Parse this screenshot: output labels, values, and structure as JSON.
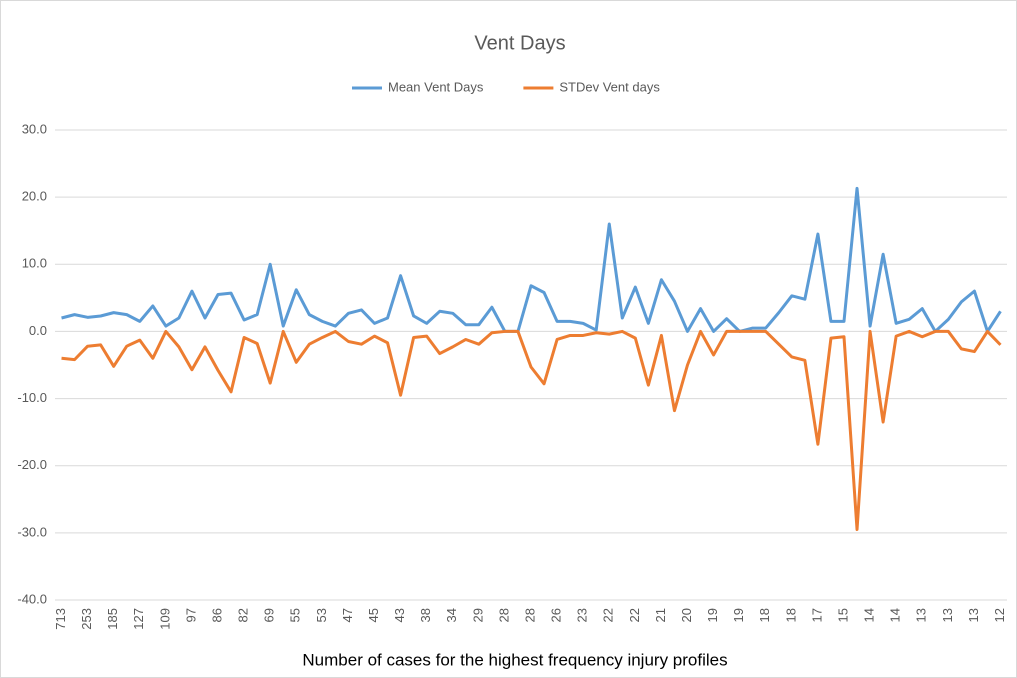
{
  "chart_data": {
    "type": "line",
    "title": "Vent Days",
    "x_label": "Number of cases for the highest frequency injury profiles",
    "categories": [
      "713",
      null,
      "253",
      null,
      "185",
      null,
      "127",
      null,
      "109",
      null,
      "97",
      null,
      "86",
      null,
      "82",
      null,
      "69",
      null,
      "55",
      null,
      "53",
      null,
      "47",
      null,
      "45",
      null,
      "43",
      null,
      "38",
      null,
      "34",
      null,
      "29",
      null,
      "28",
      null,
      "28",
      null,
      "26",
      null,
      "23",
      null,
      "22",
      null,
      "22",
      null,
      "21",
      null,
      "20",
      null,
      "19",
      null,
      "19",
      null,
      "18",
      null,
      "18",
      null,
      "17",
      null,
      "15",
      null,
      "14",
      null,
      "14",
      null,
      "13",
      null,
      "13",
      null,
      "13",
      null,
      "12"
    ],
    "series": [
      {
        "name": "Mean Vent Days",
        "color": "#5b9bd5",
        "values": [
          2.0,
          2.5,
          2.1,
          2.3,
          2.8,
          2.5,
          1.5,
          3.8,
          0.8,
          2.0,
          6.0,
          2.0,
          5.5,
          5.7,
          1.7,
          2.5,
          10.0,
          0.8,
          6.2,
          2.5,
          1.5,
          0.8,
          2.7,
          3.2,
          1.2,
          2.0,
          8.3,
          2.3,
          1.2,
          3.0,
          2.7,
          1.0,
          1.0,
          3.6,
          0.0,
          0.0,
          6.8,
          5.8,
          1.5,
          1.5,
          1.2,
          0.2,
          16.0,
          2.0,
          6.6,
          1.2,
          7.7,
          4.5,
          0.0,
          3.4,
          0.0,
          1.9,
          0.0,
          0.5,
          0.5,
          2.8,
          5.3,
          4.8,
          14.5,
          1.5,
          1.5,
          21.3,
          0.8,
          11.5,
          1.2,
          1.8,
          3.4,
          0.0,
          1.8,
          4.4,
          6.0,
          0.0,
          3.0
        ]
      },
      {
        "name": "STDev Vent days",
        "color": "#ed7d31",
        "values": [
          -4.0,
          -4.2,
          -2.2,
          -2.0,
          -5.2,
          -2.2,
          -1.3,
          -4.0,
          0.0,
          -2.3,
          -5.7,
          -2.3,
          -5.8,
          -9.0,
          -0.9,
          -1.8,
          -7.7,
          0.0,
          -4.6,
          -1.9,
          -0.9,
          0.0,
          -1.5,
          -1.9,
          -0.7,
          -1.7,
          -9.5,
          -0.9,
          -0.7,
          -3.3,
          -2.3,
          -1.2,
          -1.9,
          -0.2,
          0.0,
          0.0,
          -5.3,
          -7.8,
          -1.2,
          -0.6,
          -0.6,
          -0.2,
          -0.4,
          0.0,
          -1.0,
          -8.0,
          -0.6,
          -11.8,
          -5.0,
          0.0,
          -3.5,
          0.0,
          0.0,
          0.0,
          0.0,
          -1.9,
          -3.8,
          -4.3,
          -16.8,
          -1.0,
          -0.8,
          -29.5,
          0.0,
          -13.5,
          -0.7,
          0.0,
          -0.8,
          0.0,
          0.0,
          -2.6,
          -3.0,
          0.0,
          -2.0
        ]
      }
    ],
    "ylim": [
      -40,
      30
    ],
    "yticks": [
      {
        "value": -40,
        "label": "-40.0"
      },
      {
        "value": -30,
        "label": "-30.0"
      },
      {
        "value": -20,
        "label": "-20.0"
      },
      {
        "value": -10,
        "label": "-10.0"
      },
      {
        "value": 0,
        "label": "0.0"
      },
      {
        "value": 10,
        "label": "10.0"
      },
      {
        "value": 20,
        "label": "20.0"
      },
      {
        "value": 30,
        "label": "30.0"
      }
    ],
    "grid": true,
    "legend": "top"
  }
}
